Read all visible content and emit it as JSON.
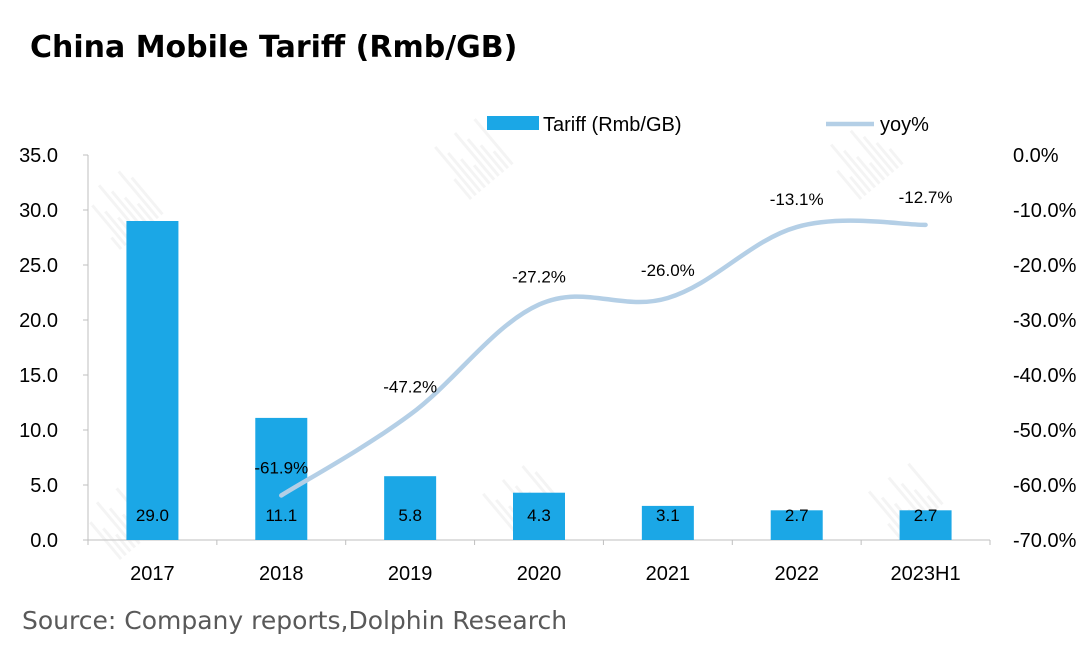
{
  "title": "China Mobile Tariff (Rmb/GB)",
  "source": "Source: Company reports,Dolphin Research",
  "chart_data": {
    "type": "bar+line",
    "title": "China Mobile Tariff (Rmb/GB)",
    "categories": [
      "2017",
      "2018",
      "2019",
      "2020",
      "2021",
      "2022",
      "2023H1"
    ],
    "series": [
      {
        "name": "Tariff (Rmb/GB)",
        "type": "bar",
        "axis": "left",
        "values": [
          29.0,
          11.1,
          5.8,
          4.3,
          3.1,
          2.7,
          2.7
        ],
        "labels": [
          "29.0",
          "11.1",
          "5.8",
          "4.3",
          "3.1",
          "2.7",
          "2.7"
        ],
        "color": "#1ba7e6"
      },
      {
        "name": "yoy%",
        "type": "line",
        "axis": "right",
        "values": [
          null,
          -61.9,
          -47.2,
          -27.2,
          -26.0,
          -13.1,
          -12.7
        ],
        "labels": [
          "",
          "-61.9%",
          "-47.2%",
          "-27.2%",
          "-26.0%",
          "-13.1%",
          "-12.7%"
        ],
        "color": "#b4cfe6"
      }
    ],
    "y_left": {
      "min": 0,
      "max": 35,
      "step": 5,
      "ticks": [
        "0.0",
        "5.0",
        "10.0",
        "15.0",
        "20.0",
        "25.0",
        "30.0",
        "35.0"
      ]
    },
    "y_right": {
      "min": -70,
      "max": 0,
      "step": 10,
      "ticks": [
        "-70.0%",
        "-60.0%",
        "-50.0%",
        "-40.0%",
        "-30.0%",
        "-20.0%",
        "-10.0%",
        "0.0%"
      ]
    },
    "legend": [
      "Tariff (Rmb/GB)",
      "yoy%"
    ],
    "legend_position": "top-right",
    "grid": false
  }
}
